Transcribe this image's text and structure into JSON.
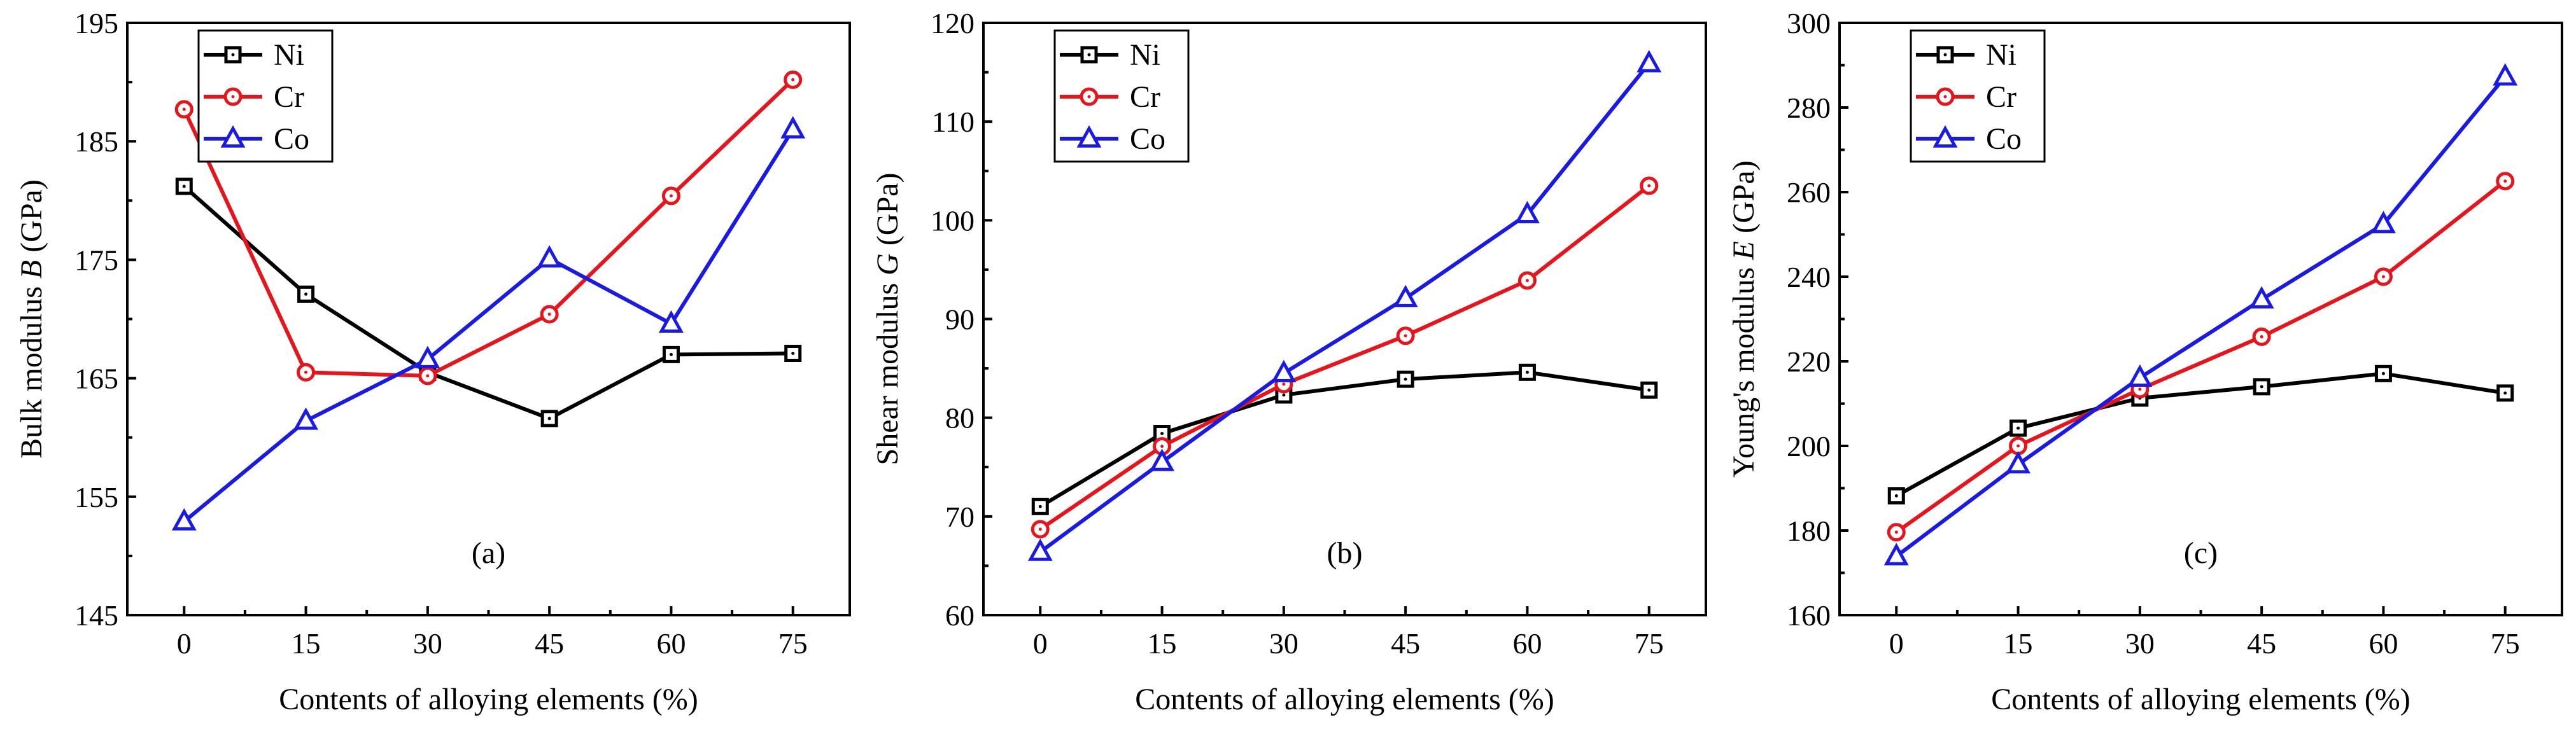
{
  "chart_data": [
    {
      "type": "line",
      "panel_label": "(a)",
      "xlabel": "Contents of alloying elements (%)",
      "ylabel_prefix": "Bulk modulus ",
      "ylabel_symbol": "B",
      "ylabel_suffix": " (GPa)",
      "x": [
        0,
        15,
        30,
        45,
        60,
        75
      ],
      "xlim": [
        -7,
        82
      ],
      "ylim": [
        145,
        195
      ],
      "yticks": [
        145,
        155,
        165,
        175,
        185,
        195
      ],
      "legend_position": "top-left",
      "series": [
        {
          "name": "Ni",
          "color": "#000000",
          "marker": "square",
          "values": [
            181.2,
            172.1,
            165.5,
            161.6,
            167.0,
            167.1
          ]
        },
        {
          "name": "Cr",
          "color": "#e8141b",
          "marker": "circle",
          "values": [
            187.7,
            165.5,
            165.2,
            170.4,
            180.4,
            190.2
          ]
        },
        {
          "name": "Co",
          "color": "#1a1ae6",
          "marker": "triangle",
          "values": [
            152.9,
            161.4,
            166.6,
            175.1,
            169.6,
            186.0
          ]
        }
      ]
    },
    {
      "type": "line",
      "panel_label": "(b)",
      "xlabel": "Contents of alloying elements (%)",
      "ylabel_prefix": "Shear modulus ",
      "ylabel_symbol": "G",
      "ylabel_suffix": " (GPa)",
      "x": [
        0,
        15,
        30,
        45,
        60,
        75
      ],
      "xlim": [
        -7,
        82
      ],
      "ylim": [
        60,
        120
      ],
      "yticks": [
        60,
        70,
        80,
        90,
        100,
        110,
        120
      ],
      "legend_position": "top-left",
      "series": [
        {
          "name": "Ni",
          "color": "#000000",
          "marker": "square",
          "values": [
            71.0,
            78.4,
            82.3,
            83.9,
            84.6,
            82.8
          ]
        },
        {
          "name": "Cr",
          "color": "#e8141b",
          "marker": "circle",
          "values": [
            68.7,
            77.1,
            83.4,
            88.3,
            93.9,
            103.5
          ]
        },
        {
          "name": "Co",
          "color": "#1a1ae6",
          "marker": "triangle",
          "values": [
            66.4,
            75.5,
            84.5,
            92.1,
            100.6,
            115.9
          ]
        }
      ]
    },
    {
      "type": "line",
      "panel_label": "(c)",
      "xlabel": "Contents of alloying elements (%)",
      "ylabel_prefix": "Young's modulus ",
      "ylabel_symbol": "E",
      "ylabel_suffix": " (GPa)",
      "x": [
        0,
        15,
        30,
        45,
        60,
        75
      ],
      "xlim": [
        -7,
        82
      ],
      "ylim": [
        160,
        300
      ],
      "yticks": [
        160,
        180,
        200,
        220,
        240,
        260,
        280,
        300
      ],
      "legend_position": "top-left",
      "series": [
        {
          "name": "Ni",
          "color": "#000000",
          "marker": "square",
          "values": [
            188.2,
            204.2,
            211.3,
            214.0,
            217.1,
            212.5
          ]
        },
        {
          "name": "Cr",
          "color": "#e8141b",
          "marker": "circle",
          "values": [
            179.6,
            200.0,
            213.4,
            225.8,
            240.0,
            262.6
          ]
        },
        {
          "name": "Co",
          "color": "#1a1ae6",
          "marker": "triangle",
          "values": [
            173.9,
            195.6,
            216.1,
            234.6,
            252.4,
            287.3
          ]
        }
      ]
    }
  ]
}
